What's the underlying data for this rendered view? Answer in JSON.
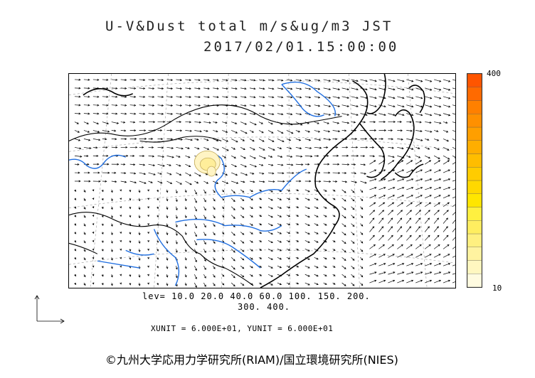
{
  "header": {
    "title": "U-V&Dust total m/s&ug/m3 JST",
    "datetime": "2017/02/01.15:00:00"
  },
  "colorbar": {
    "max_label": "400",
    "min_label": "10",
    "colors": [
      "#fffbe0",
      "#fff7c0",
      "#fff3a0",
      "#fff080",
      "#ffee60",
      "#fff040",
      "#ffe600",
      "#ffd800",
      "#ffcc00",
      "#ffbd00",
      "#ffae00",
      "#ff9f00",
      "#ff9000",
      "#ff8000",
      "#ff6a00",
      "#ff5500"
    ]
  },
  "levels": {
    "line1": "lev= 10.0 20.0 40.0 60.0 100. 150. 200.",
    "line2": "300. 400."
  },
  "units": "XUNIT = 6.000E+01, YUNIT = 6.000E+01",
  "copyright": "©九州大学応用力学研究所(RIAM)/国立環境研究所(NIES)",
  "map": {
    "wind_field": "mixed westerly and northwesterly flow over China, Korea and Japan",
    "dust_region": "light dust over north-central China (Ordos / Loess Plateau area)",
    "colors": {
      "coast": "#000000",
      "rivers": "#1f6ee0",
      "arrows": "#000000",
      "gridlines": "#999999",
      "dust_fill": "#fff2b0",
      "dust_edge": "#c8b060"
    }
  }
}
